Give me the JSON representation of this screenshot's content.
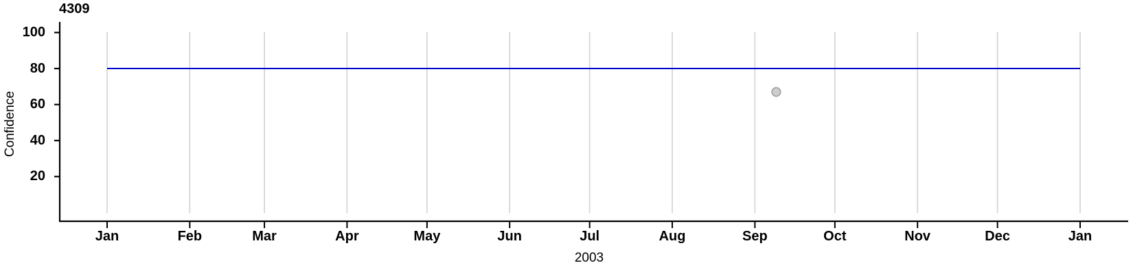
{
  "chart_data": {
    "type": "line",
    "title": "4309",
    "xlabel": "2003",
    "ylabel": "Confidence",
    "x_axis": {
      "start_date": "2003-01-01",
      "end_date": "2004-01-01",
      "tick_labels": [
        "Jan",
        "Feb",
        "Mar",
        "Apr",
        "May",
        "Jun",
        "Jul",
        "Aug",
        "Sep",
        "Oct",
        "Nov",
        "Dec",
        "Jan"
      ]
    },
    "y_axis": {
      "tick_values": [
        20,
        40,
        60,
        80,
        100
      ],
      "tick_labels": [
        "20",
        "40",
        "60",
        "80",
        "100"
      ],
      "ylim": [
        0,
        105
      ]
    },
    "grid": {
      "vertical_monthly": true,
      "horizontal": false,
      "color": "#d6d6d6"
    },
    "axis_color": "#000000",
    "series": [
      {
        "name": "confidence-line",
        "type": "line",
        "color": "#0000CC",
        "points": [
          {
            "date": "2003-01-01",
            "value": 80
          },
          {
            "date": "2004-01-01",
            "value": 80
          }
        ]
      }
    ],
    "markers": [
      {
        "name": "observation-point",
        "type": "point",
        "date": "2003-09-09",
        "value": 67,
        "fill": "#CDCDCD",
        "stroke": "#9E9E9E"
      }
    ]
  }
}
